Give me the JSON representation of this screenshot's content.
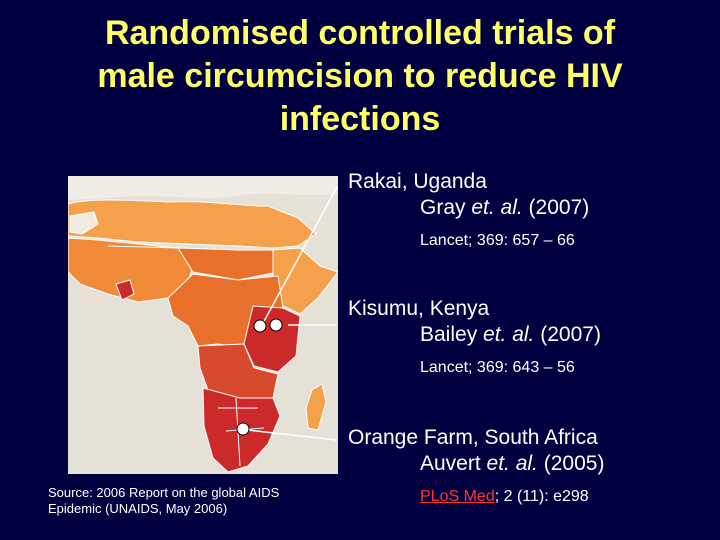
{
  "slide": {
    "title_line1": "Randomised controlled trials of",
    "title_line2": "male circumcision to reduce HIV",
    "title_line3": "infections",
    "source_line1": "Source: 2006 Report on the global AIDS",
    "source_line2": "Epidemic (UNAIDS, May 2006)"
  },
  "trials": [
    {
      "place": "Rakai, Uganda",
      "author": "Gray ",
      "etal": "et. al.",
      "year": " (2007)",
      "ref": "Lancet; 369: 657 – 66"
    },
    {
      "place": "Kisumu, Kenya",
      "author": "Bailey ",
      "etal": "et. al.",
      "year": " (2007)",
      "ref": "Lancet; 369: 643 – 56"
    },
    {
      "place": "Orange Farm, South Africa",
      "author": "Auvert ",
      "etal": "et. al.",
      "year": " (2005)",
      "ref_journal": "PLoS Med",
      "ref_rest": "; 2 (11): e298"
    }
  ],
  "colors": {
    "background": "#000040",
    "title": "#ffff66",
    "prevalence_low": "#f5a04a",
    "prevalence_mid": "#e8702a",
    "prevalence_high": "#cc2a2a",
    "link": "#ff3333"
  }
}
